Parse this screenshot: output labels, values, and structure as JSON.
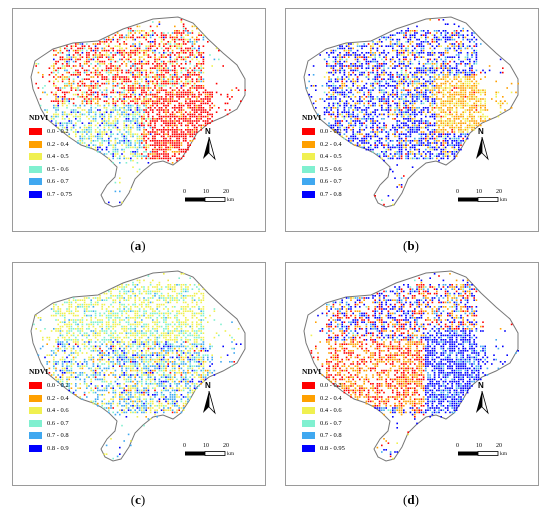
{
  "panels": [
    {
      "id": "a",
      "caption_letter": "a",
      "legend_title": "NDVI",
      "legend": [
        {
          "label": "0.0 - 0.2",
          "color": "#ff0000"
        },
        {
          "label": "0.2 - 0.4",
          "color": "#ffa000"
        },
        {
          "label": "0.4 - 0.5",
          "color": "#f0f050"
        },
        {
          "label": "0.5 - 0.6",
          "color": "#80f0d0"
        },
        {
          "label": "0.6 - 0.7",
          "color": "#40a8f0"
        },
        {
          "label": "0.7 - 0.75",
          "color": "#0000ff"
        }
      ],
      "pixel_mix": [
        0.46,
        0.18,
        0.16,
        0.08,
        0.08,
        0.04
      ]
    },
    {
      "id": "b",
      "caption_letter": "b",
      "legend_title": "NDVI",
      "legend": [
        {
          "label": "0.0 - 0.2",
          "color": "#ff0000"
        },
        {
          "label": "0.2 - 0.4",
          "color": "#ffa000"
        },
        {
          "label": "0.4 - 0.5",
          "color": "#f0f050"
        },
        {
          "label": "0.5 - 0.6",
          "color": "#80f0d0"
        },
        {
          "label": "0.6 - 0.7",
          "color": "#40a8f0"
        },
        {
          "label": "0.7 - 0.8",
          "color": "#0000ff"
        }
      ],
      "pixel_mix": [
        0.06,
        0.16,
        0.08,
        0.05,
        0.15,
        0.5
      ]
    },
    {
      "id": "c",
      "caption_letter": "c",
      "legend_title": "NDVI",
      "legend": [
        {
          "label": "0.0 - 0.2",
          "color": "#ff0000"
        },
        {
          "label": "0.2 - 0.4",
          "color": "#ffa000"
        },
        {
          "label": "0.4 - 0.6",
          "color": "#f0f050"
        },
        {
          "label": "0.6 - 0.7",
          "color": "#80f0d0"
        },
        {
          "label": "0.7 - 0.8",
          "color": "#40a8f0"
        },
        {
          "label": "0.8 - 0.9",
          "color": "#0000ff"
        }
      ],
      "pixel_mix": [
        0.02,
        0.08,
        0.3,
        0.16,
        0.34,
        0.1
      ]
    },
    {
      "id": "d",
      "caption_letter": "d",
      "legend_title": "NDVI",
      "legend": [
        {
          "label": "0.0 - 0.2",
          "color": "#ff0000"
        },
        {
          "label": "0.2 - 0.4",
          "color": "#ffa000"
        },
        {
          "label": "0.4 - 0.6",
          "color": "#f0f050"
        },
        {
          "label": "0.6 - 0.7",
          "color": "#80f0d0"
        },
        {
          "label": "0.7 - 0.8",
          "color": "#40a8f0"
        },
        {
          "label": "0.8 - 0.95",
          "color": "#0000ff"
        }
      ],
      "pixel_mix": [
        0.22,
        0.24,
        0.02,
        0.02,
        0.16,
        0.34
      ]
    }
  ],
  "north_label": "N",
  "scale": {
    "ticks": [
      "0",
      "10",
      "20"
    ],
    "unit": "km"
  },
  "colors": {
    "frame": "#9a9a9a",
    "outline": "#777777",
    "land": "#ffffff"
  }
}
